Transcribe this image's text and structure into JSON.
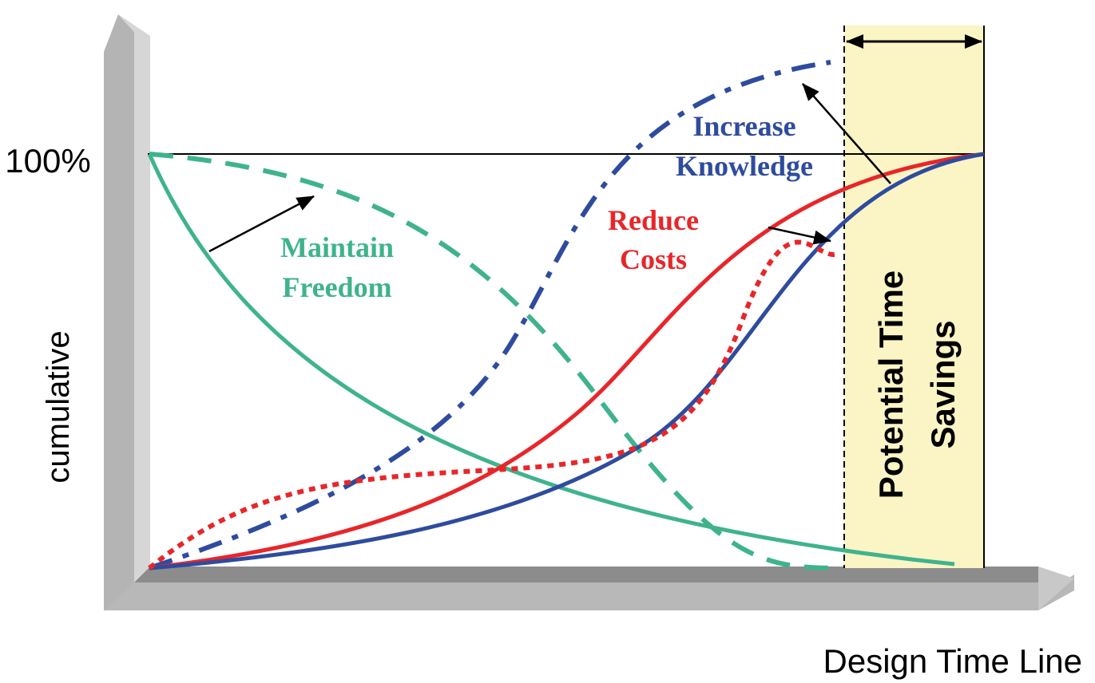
{
  "axes": {
    "level_label": "100%",
    "y_label": "cumulative",
    "x_label": "Design Time Line"
  },
  "annotations": [
    {
      "lines": [
        "Increase",
        "Knowledge"
      ]
    },
    {
      "lines": [
        "Reduce",
        "Costs"
      ]
    },
    {
      "lines": [
        "Maintain",
        "Freedom"
      ]
    }
  ],
  "region": {
    "lines": [
      "Potential Time",
      "Savings"
    ]
  }
}
